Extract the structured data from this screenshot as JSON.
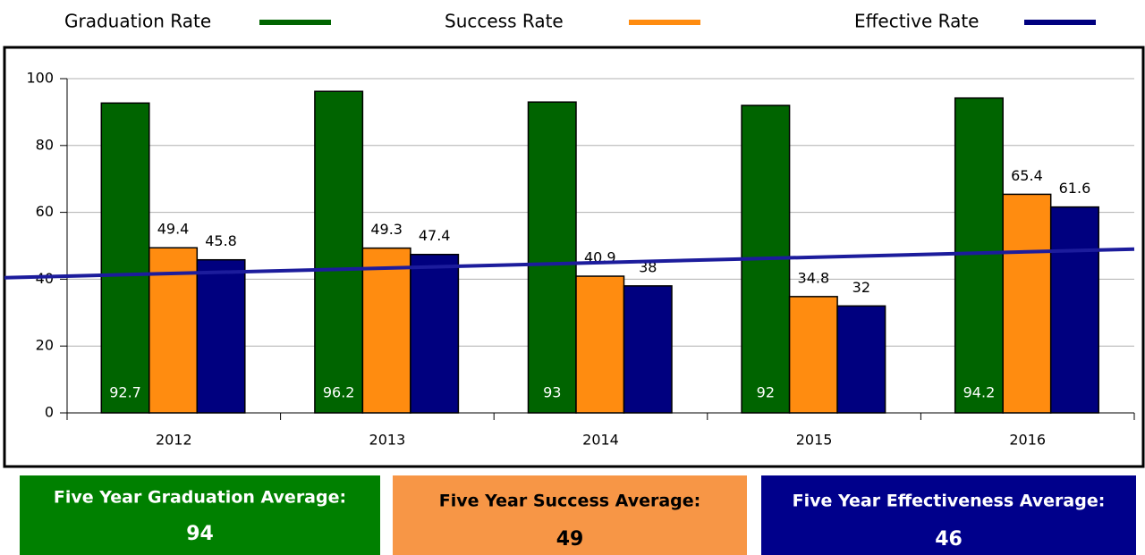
{
  "chart_data": {
    "type": "bar",
    "categories": [
      "2012",
      "2013",
      "2014",
      "2015",
      "2016"
    ],
    "series": [
      {
        "name": "Graduation Rate",
        "color": "#006400",
        "values": [
          92.7,
          96.2,
          93,
          92,
          94.2
        ]
      },
      {
        "name": "Success Rate",
        "color": "#ff8c10",
        "values": [
          49.4,
          49.3,
          40.9,
          34.8,
          65.4
        ]
      },
      {
        "name": "Effective Rate",
        "color": "#00007f",
        "values": [
          45.8,
          47.4,
          38,
          32,
          61.6
        ]
      }
    ],
    "trendline": {
      "series": "Effective Rate",
      "color": "#1c1c9c"
    },
    "ylim": [
      0,
      100
    ],
    "yticks": [
      0,
      20,
      40,
      60,
      80,
      100
    ],
    "grid": true,
    "legend": "top"
  },
  "summary_boxes": [
    {
      "label": "Five Year Graduation Average:",
      "value": "94",
      "color": "#008000"
    },
    {
      "label": "Five Year Success Average:",
      "value": "49",
      "color": "#f79646"
    },
    {
      "label": "Five Year Effectiveness Average:",
      "value": "46",
      "color": "#00008b"
    }
  ]
}
